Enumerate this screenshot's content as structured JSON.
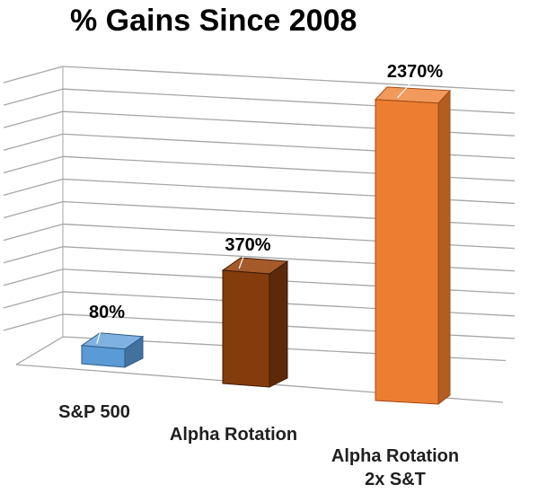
{
  "chart_data": {
    "type": "bar",
    "title": "% Gains Since 2008",
    "xlabel": "",
    "ylabel": "",
    "categories": [
      "S&P 500",
      "Alpha Rotation",
      "Alpha Rotation\n2x S&T"
    ],
    "values": [
      80,
      370,
      2370
    ],
    "data_labels": [
      "80%",
      "370%",
      "2370%"
    ],
    "ylim": [
      0,
      2500
    ],
    "grid": true,
    "legend": "none",
    "three_d": true,
    "colors": {
      "front": [
        "#5b9bd5",
        "#843c0c",
        "#ed7d31"
      ],
      "side": [
        "#41719c",
        "#5c2a08",
        "#b35d22"
      ],
      "top": [
        "#7fb2e0",
        "#a55a2a",
        "#f29a5c"
      ],
      "edge": [
        "#2e5a88",
        "#3e1b04",
        "#a04a14"
      ],
      "grid": "#a6a6a6"
    }
  }
}
